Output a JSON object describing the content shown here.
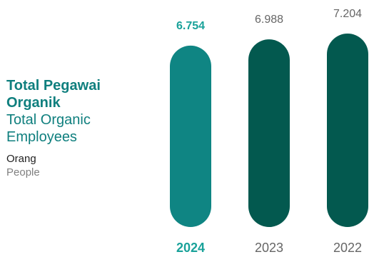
{
  "header": {
    "title_id": "Total Pegawai Organik",
    "title_en": "Total Organic Employees",
    "unit_id": "Orang",
    "unit_en": "People"
  },
  "colors": {
    "highlight": "#0f8583",
    "bar_dark": "#03594f",
    "label_highlight": "#1aa29a",
    "label_normal": "#666666",
    "title": "#0f7f7e"
  },
  "chart_data": {
    "type": "bar",
    "categories": [
      "2024",
      "2023",
      "2022"
    ],
    "values": [
      6754,
      6988,
      7204
    ],
    "value_labels": [
      "6.754",
      "6.988",
      "7.204"
    ],
    "highlight_index": 0,
    "title": "Total Pegawai Organik",
    "ylabel": "Orang",
    "xlabel": "",
    "ylim": [
      0,
      7204
    ],
    "grid": false,
    "legend": "none"
  }
}
